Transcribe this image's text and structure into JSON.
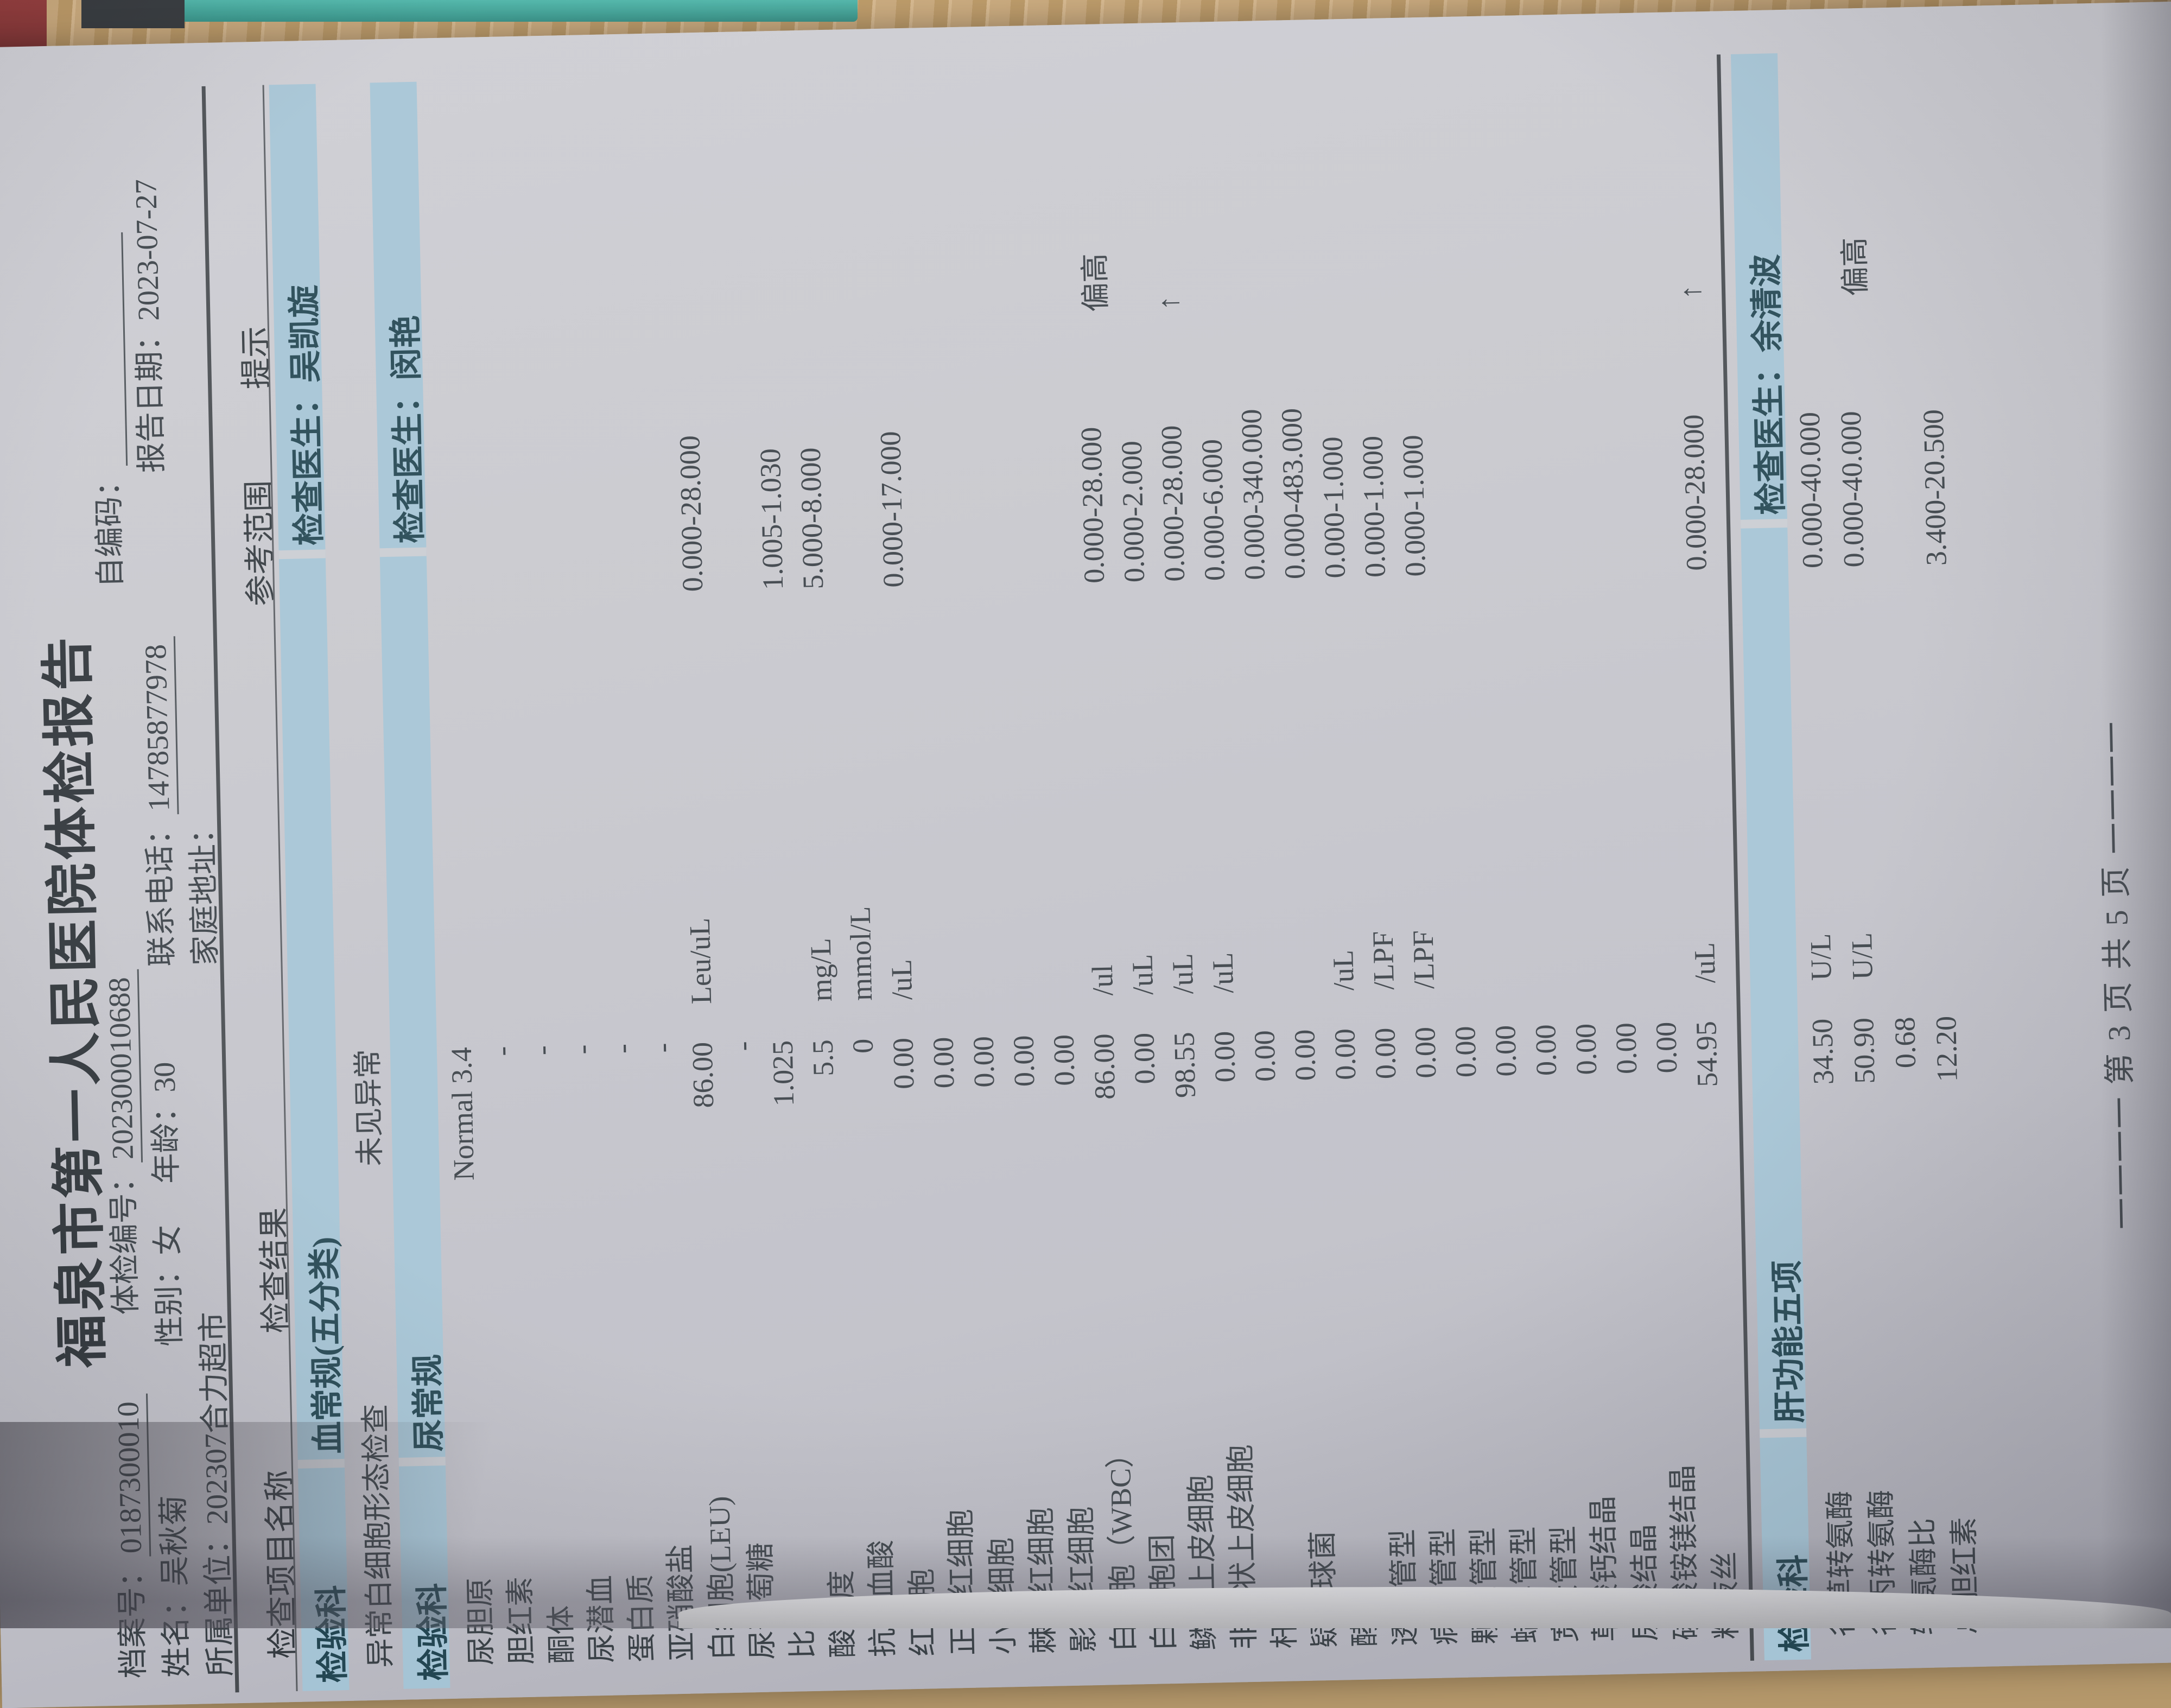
{
  "report": {
    "title": "福泉市第一人民医院体检报告",
    "header": {
      "archive_label": "档案号：",
      "archive_no": "0187300010",
      "exam_label": "体检编号：",
      "exam_no": "202300010688",
      "selfcode_label": "自编码：",
      "name_label": "姓名：",
      "name": "吴秋菊",
      "gender_label": "性别：",
      "gender": "女",
      "age_label": "年龄：",
      "age": "30",
      "phone_label": "联系电话：",
      "phone": "14785877978",
      "date_label": "报告日期：",
      "date": "2023-07-27",
      "unit_label": "所属单位：",
      "unit": "202307合力超市",
      "address_label": "家庭地址："
    },
    "columns": [
      "检查项目名称",
      "检查结果",
      "参考范围",
      "提示"
    ],
    "sections": [
      {
        "dept": "检验科",
        "name": "血常规(五分类)",
        "doctor_label": "检查医生：",
        "doctor": "吴凯旋",
        "rows": [
          {
            "item": "异常白细胞形态检查",
            "result": "未见异常",
            "unit": "",
            "ref": "",
            "flag": ""
          }
        ]
      },
      {
        "dept": "检验科",
        "name": "尿常规",
        "doctor_label": "检查医生：",
        "doctor": "闵艳",
        "rows": [
          {
            "item": "尿胆原",
            "result": "Normal 3.4",
            "unit": "",
            "ref": "",
            "flag": ""
          },
          {
            "item": "胆红素",
            "result": "-",
            "unit": "",
            "ref": "",
            "flag": ""
          },
          {
            "item": "酮体",
            "result": "-",
            "unit": "",
            "ref": "",
            "flag": ""
          },
          {
            "item": "尿潜血",
            "result": "-",
            "unit": "",
            "ref": "",
            "flag": ""
          },
          {
            "item": "蛋白质",
            "result": "-",
            "unit": "",
            "ref": "",
            "flag": ""
          },
          {
            "item": "亚硝酸盐",
            "result": "-",
            "unit": "",
            "ref": "",
            "flag": ""
          },
          {
            "item": "白细胞(LEU)",
            "result": "86.00",
            "unit": "Leu/uL",
            "ref": "0.000-28.000",
            "flag": ""
          },
          {
            "item": "尿葡萄糖",
            "result": "-",
            "unit": "",
            "ref": "",
            "flag": ""
          },
          {
            "item": "比重",
            "result": "1.025",
            "unit": "",
            "ref": "1.005-1.030",
            "flag": ""
          },
          {
            "item": "酸碱度",
            "result": "5.5",
            "unit": "mg/L",
            "ref": "5.000-8.000",
            "flag": ""
          },
          {
            "item": "抗坏血酸",
            "result": "0",
            "unit": "mmol/L",
            "ref": "",
            "flag": ""
          },
          {
            "item": "红细胞",
            "result": "0.00",
            "unit": "/uL",
            "ref": "0.000-17.000",
            "flag": ""
          },
          {
            "item": "正常红细胞",
            "result": "0.00",
            "unit": "",
            "ref": "",
            "flag": ""
          },
          {
            "item": "小红细胞",
            "result": "0.00",
            "unit": "",
            "ref": "",
            "flag": ""
          },
          {
            "item": "棘形红细胞",
            "result": "0.00",
            "unit": "",
            "ref": "",
            "flag": ""
          },
          {
            "item": "影形红细胞",
            "result": "0.00",
            "unit": "",
            "ref": "",
            "flag": ""
          },
          {
            "item": "白细胞（WBC）",
            "result": "86.00",
            "unit": "/ul",
            "ref": "0.000-28.000",
            "flag": "偏高"
          },
          {
            "item": "白细胞团",
            "result": "0.00",
            "unit": "/uL",
            "ref": "0.000-2.000",
            "flag": ""
          },
          {
            "item": "鳞状上皮细胞",
            "result": "98.55",
            "unit": "/uL",
            "ref": "0.000-28.000",
            "flag": "↑"
          },
          {
            "item": "非鳞状上皮细胞",
            "result": "0.00",
            "unit": "/uL",
            "ref": "0.000-6.000",
            "flag": ""
          },
          {
            "item": "杆菌",
            "result": "0.00",
            "unit": "",
            "ref": "0.000-340.000",
            "flag": ""
          },
          {
            "item": "疑似球菌",
            "result": "0.00",
            "unit": "",
            "ref": "0.000-483.000",
            "flag": ""
          },
          {
            "item": "酵母",
            "result": "0.00",
            "unit": "/uL",
            "ref": "0.000-1.000",
            "flag": ""
          },
          {
            "item": "透明管型",
            "result": "0.00",
            "unit": "/LPF",
            "ref": "0.000-1.000",
            "flag": ""
          },
          {
            "item": "病理管型",
            "result": "0.00",
            "unit": "/LPF",
            "ref": "0.000-1.000",
            "flag": ""
          },
          {
            "item": "颗粒管型",
            "result": "0.00",
            "unit": "",
            "ref": "",
            "flag": ""
          },
          {
            "item": "蜡样管型",
            "result": "0.00",
            "unit": "",
            "ref": "",
            "flag": ""
          },
          {
            "item": "宽大管型",
            "result": "0.00",
            "unit": "",
            "ref": "",
            "flag": ""
          },
          {
            "item": "草酸钙结晶",
            "result": "0.00",
            "unit": "",
            "ref": "",
            "flag": ""
          },
          {
            "item": "尿酸结晶",
            "result": "0.00",
            "unit": "",
            "ref": "",
            "flag": ""
          },
          {
            "item": "磷酸铵镁结晶",
            "result": "0.00",
            "unit": "",
            "ref": "",
            "flag": ""
          },
          {
            "item": "粘液丝",
            "result": "54.95",
            "unit": "/uL",
            "ref": "0.000-28.000",
            "flag": "↑"
          }
        ]
      },
      {
        "dept": "检验科",
        "name": "肝功能五项",
        "doctor_label": "检查医生：",
        "doctor": "余清波",
        "rows": [
          {
            "item": "谷草转氨酶",
            "result": "34.50",
            "unit": "U/L",
            "ref": "0.000-40.000",
            "flag": ""
          },
          {
            "item": "谷丙转氨酶",
            "result": "50.90",
            "unit": "U/L",
            "ref": "0.000-40.000",
            "flag": "偏高"
          },
          {
            "item": "转氨酶比",
            "result": "0.68",
            "unit": "",
            "ref": "",
            "flag": ""
          },
          {
            "item": "总胆红素",
            "result": "12.20",
            "unit": "",
            "ref": "3.400-20.500",
            "flag": ""
          }
        ]
      }
    ],
    "footer": {
      "page_text": "一一一一  第 3 页  共  5 页  一一一一"
    }
  },
  "colors": {
    "band_blue": "#a5c4d5",
    "paper": "#c6c6cc",
    "ink": "#3a4147",
    "desk_wood": "#c7a576"
  }
}
